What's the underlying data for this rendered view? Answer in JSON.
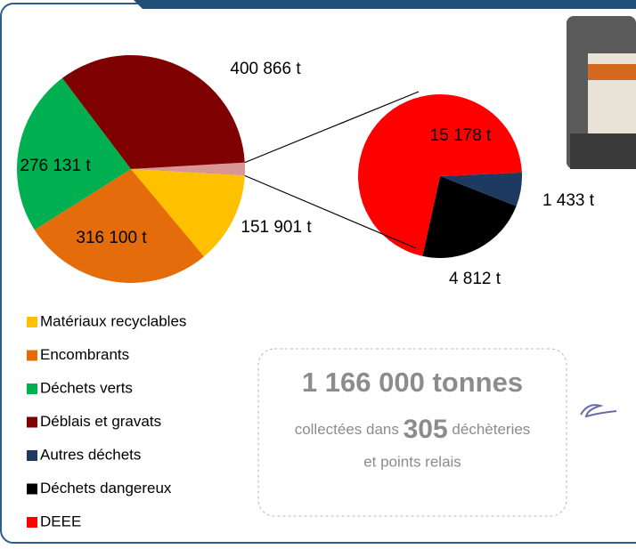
{
  "chart_data": {
    "type": "pie-of-pie",
    "categories": [
      "Matériaux recyclables",
      "Encombrants",
      "Déchets verts",
      "Déblais et gravats",
      "Autres déchets",
      "Déchets dangereux",
      "DEEE"
    ],
    "colors": [
      "#ffc000",
      "#e46c0a",
      "#00b050",
      "#7f0000",
      "#1f3a60",
      "#000000",
      "#ff0000"
    ],
    "other_color": "#d99694",
    "values": [
      151901,
      316100,
      276131,
      400866,
      1433,
      4812,
      15178
    ],
    "value_labels": [
      "151 901 t",
      "316 100 t",
      "276 131 t",
      "400 866 t",
      "1 433 t",
      "4 812 t",
      "15 178 t"
    ]
  },
  "summary": {
    "total": "1 166 000 tonnes",
    "line1_before": "collectées dans",
    "number": "305",
    "line1_after": "déchèteries",
    "line2": "et points relais"
  }
}
